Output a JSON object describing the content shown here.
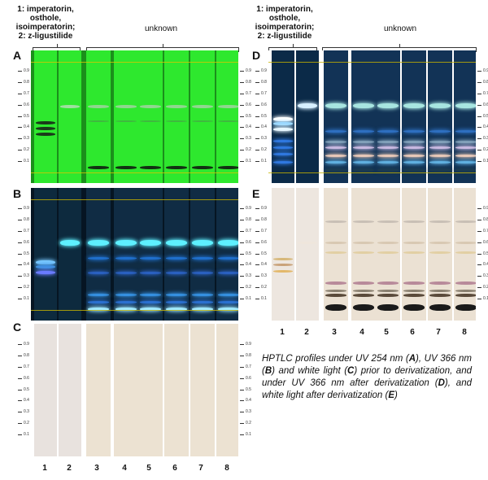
{
  "headers": {
    "standards_line1": "1: imperatorin, osthole,",
    "standards_line2": "isoimperatorin;",
    "standards_line3": "2: z-ligustilide",
    "unknown": "unknown"
  },
  "panel_letters": {
    "A": "A",
    "B": "B",
    "C": "C",
    "D": "D",
    "E": "E"
  },
  "lane_numbers": [
    "1",
    "2",
    "3",
    "4",
    "5",
    "6",
    "7",
    "8"
  ],
  "rf_ticks": [
    "0.9",
    "0.8",
    "0.7",
    "0.6",
    "0.5",
    "0.4",
    "0.3",
    "0.2",
    "0.1"
  ],
  "caption": {
    "p1": "HPTLC profiles under UV 254 nm (",
    "A": "A",
    "p2": "), UV 366 nm (",
    "B": "B",
    "p3": ") and white light (",
    "C": "C",
    "p4": ") prior to derivatization, and under UV 366 nm after derivatization (",
    "D": "D",
    "p5": "), and white light after derivatization (",
    "E": "E",
    "p6": ")"
  },
  "colors": {
    "uv254_plate": "#27e027",
    "uv366_plate": "#0b2a44",
    "white_plate": "#ece4dc",
    "derivatized_uv366_plate": "#0e2c4e",
    "derivatized_white_plate": "#e9dfd3"
  }
}
